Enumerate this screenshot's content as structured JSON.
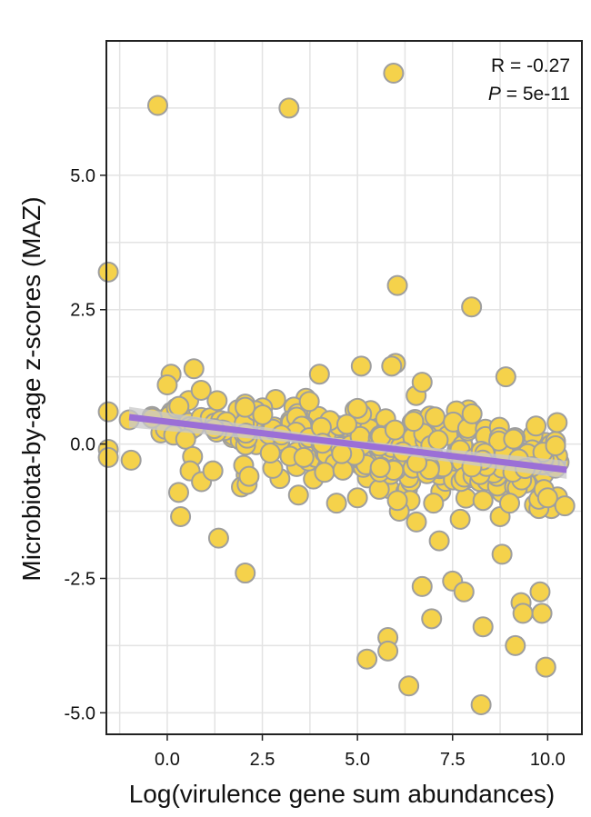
{
  "chart_data": {
    "type": "scatter",
    "xlabel": "Log(virulence gene sum abundances)",
    "ylabel": "Microbiota-by-age z-scores (MAZ)",
    "xlim": [
      -1.6,
      10.9
    ],
    "ylim": [
      -5.4,
      7.5
    ],
    "x_ticks": [
      0.0,
      2.5,
      5.0,
      7.5,
      10.0
    ],
    "x_tick_labels": [
      "0.0",
      "2.5",
      "5.0",
      "7.5",
      "10.0"
    ],
    "y_ticks": [
      -5.0,
      -2.5,
      0.0,
      2.5,
      5.0
    ],
    "y_tick_labels": [
      "-5.0",
      "-2.5",
      "0.0",
      "2.5",
      "5.0"
    ],
    "grid": true,
    "annotation": {
      "r_text": "R = -0.27",
      "p_symbol": "P",
      "p_value": " = 5e-11"
    },
    "regression": {
      "x": [
        -1.0,
        10.5
      ],
      "y": [
        0.5,
        -0.48
      ],
      "band": 0.12
    },
    "colors": {
      "point_fill": "#F5D24B",
      "point_stroke": "#9E9E9E",
      "line": "#9B6FD6",
      "band": "#C8C8C8",
      "grid": "#E3E3E3",
      "axis": "#222222"
    },
    "outliers": [
      {
        "x": -1.55,
        "y": 3.2
      },
      {
        "x": -0.25,
        "y": 6.3
      },
      {
        "x": 3.2,
        "y": 6.25
      },
      {
        "x": 5.95,
        "y": 6.9
      },
      {
        "x": 6.05,
        "y": 2.95
      },
      {
        "x": 8.0,
        "y": 2.55
      },
      {
        "x": 5.1,
        "y": 1.45
      },
      {
        "x": 6.0,
        "y": 1.5
      },
      {
        "x": 5.9,
        "y": 1.45
      },
      {
        "x": 0.7,
        "y": 1.4
      },
      {
        "x": 0.1,
        "y": 1.3
      },
      {
        "x": 0.0,
        "y": 1.1
      },
      {
        "x": 4.0,
        "y": 1.3
      },
      {
        "x": 8.9,
        "y": 1.25
      },
      {
        "x": 6.7,
        "y": 1.15
      },
      {
        "x": -1.55,
        "y": 0.6
      },
      {
        "x": -1.55,
        "y": -0.1
      },
      {
        "x": -1.55,
        "y": -0.25
      },
      {
        "x": -1.0,
        "y": 0.45
      },
      {
        "x": -0.95,
        "y": -0.3
      },
      {
        "x": 0.3,
        "y": -0.9
      },
      {
        "x": 0.35,
        "y": -1.35
      },
      {
        "x": 0.6,
        "y": -0.5
      },
      {
        "x": 0.9,
        "y": -0.7
      },
      {
        "x": 1.2,
        "y": -0.5
      },
      {
        "x": 1.35,
        "y": -1.75
      },
      {
        "x": 1.95,
        "y": -0.8
      },
      {
        "x": 2.1,
        "y": -0.75
      },
      {
        "x": 2.15,
        "y": -0.6
      },
      {
        "x": 2.05,
        "y": -2.4
      },
      {
        "x": 3.45,
        "y": -0.95
      },
      {
        "x": 4.45,
        "y": -1.1
      },
      {
        "x": 5.0,
        "y": -1.0
      },
      {
        "x": 5.25,
        "y": -4.0
      },
      {
        "x": 5.8,
        "y": -3.6
      },
      {
        "x": 5.8,
        "y": -3.85
      },
      {
        "x": 6.35,
        "y": -4.5
      },
      {
        "x": 6.55,
        "y": -1.45
      },
      {
        "x": 6.7,
        "y": -2.65
      },
      {
        "x": 6.95,
        "y": -3.25
      },
      {
        "x": 7.15,
        "y": -1.8
      },
      {
        "x": 7.5,
        "y": -2.55
      },
      {
        "x": 7.8,
        "y": -2.75
      },
      {
        "x": 7.7,
        "y": -1.4
      },
      {
        "x": 8.3,
        "y": -3.4
      },
      {
        "x": 8.25,
        "y": -4.85
      },
      {
        "x": 8.8,
        "y": -2.05
      },
      {
        "x": 8.75,
        "y": -1.35
      },
      {
        "x": 9.15,
        "y": -3.75
      },
      {
        "x": 9.3,
        "y": -2.95
      },
      {
        "x": 9.35,
        "y": -3.15
      },
      {
        "x": 9.8,
        "y": -2.75
      },
      {
        "x": 9.85,
        "y": -3.15
      },
      {
        "x": 9.95,
        "y": -4.15
      },
      {
        "x": 10.0,
        "y": -1.0
      },
      {
        "x": 10.45,
        "y": -1.15
      },
      {
        "x": 10.25,
        "y": 0.4
      },
      {
        "x": 6.1,
        "y": -1.25
      },
      {
        "x": 6.05,
        "y": -1.05
      },
      {
        "x": 7.0,
        "y": -1.1
      },
      {
        "x": 8.3,
        "y": -1.05
      },
      {
        "x": 9.0,
        "y": -1.1
      }
    ],
    "cluster": {
      "point_count": 340,
      "segments": [
        {
          "x_from": -0.4,
          "x_to": 1.0,
          "count": 22,
          "y_sd": 0.25
        },
        {
          "x_from": 1.0,
          "x_to": 2.0,
          "count": 18,
          "y_sd": 0.2
        },
        {
          "x_from": 2.0,
          "x_to": 4.0,
          "count": 60,
          "y_sd": 0.3
        },
        {
          "x_from": 4.0,
          "x_to": 5.5,
          "count": 55,
          "y_sd": 0.32
        },
        {
          "x_from": 5.5,
          "x_to": 8.0,
          "count": 105,
          "y_sd": 0.38
        },
        {
          "x_from": 8.0,
          "x_to": 10.3,
          "count": 80,
          "y_sd": 0.35
        }
      ]
    }
  }
}
